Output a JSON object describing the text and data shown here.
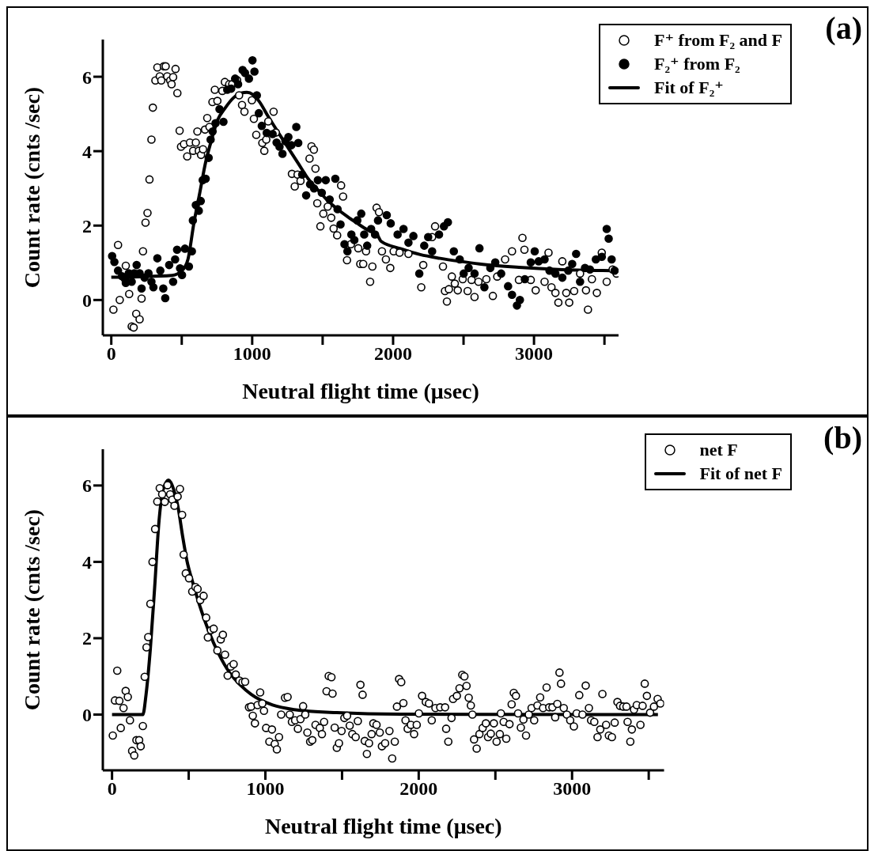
{
  "chart_data": [
    {
      "type": "scatter",
      "xlabel": "Neutral flight time (μsec)",
      "ylabel": "Count rate (cnts /sec)",
      "annotations": [
        "(a)"
      ],
      "xlim": [
        -60,
        3600
      ],
      "ylim": [
        -0.95,
        7.0
      ],
      "xticks": [
        0,
        {
          "value": 500,
          "label": null
        },
        1000,
        {
          "value": 1500,
          "label": null
        },
        2000,
        {
          "value": 2500,
          "label": null
        },
        3000,
        {
          "value": 3500,
          "label": null
        }
      ],
      "yticks": [
        0,
        2,
        4,
        6
      ],
      "grid": false,
      "legend": "top right",
      "marker": "circle",
      "series": [
        {
          "name": "F⁺ from F₂ and F",
          "type": "scatter",
          "color": "#000000",
          "x": [
            15,
            48,
            60,
            103,
            127,
            145,
            159,
            177,
            201,
            215,
            225,
            243,
            257,
            271,
            285,
            295,
            313,
            327,
            344,
            355,
            373,
            386,
            397,
            418,
            428,
            439,
            456,
            469,
            485,
            495,
            516,
            539,
            558,
            581,
            600,
            611,
            621,
            637,
            651,
            665,
            681,
            697,
            718,
            735,
            753,
            788,
            806,
            837,
            858,
            893,
            907,
            928,
            945,
            998,
            1012,
            1029,
            1072,
            1086,
            1100,
            1114,
            1152,
            1168,
            1282,
            1302,
            1322,
            1343,
            1407,
            1421,
            1438,
            1449,
            1462,
            1484,
            1505,
            1536,
            1561,
            1578,
            1603,
            1631,
            1645,
            1673,
            1701,
            1753,
            1767,
            1788,
            1808,
            1837,
            1853,
            1883,
            1900,
            1921,
            1949,
            1980,
            2004,
            2046,
            2109,
            2200,
            2214,
            2277,
            2298,
            2354,
            2368,
            2382,
            2396,
            2417,
            2438,
            2459,
            2494,
            2529,
            2557,
            2578,
            2606,
            2662,
            2708,
            2739,
            2795,
            2844,
            2893,
            2918,
            2932,
            2977,
            3012,
            3075,
            3103,
            3124,
            3152,
            3173,
            3201,
            3229,
            3250,
            3285,
            3327,
            3369,
            3383,
            3411,
            3446,
            3481,
            3516,
            3558,
            3586
          ],
          "values": [
            -0.26,
            1.48,
            0.0,
            0.92,
            0.16,
            -0.71,
            -0.74,
            -0.37,
            -0.52,
            0.04,
            1.31,
            2.08,
            2.34,
            3.24,
            4.31,
            5.17,
            5.9,
            6.25,
            6.01,
            5.9,
            6.28,
            6.28,
            6.01,
            5.9,
            5.8,
            5.99,
            6.21,
            5.56,
            4.55,
            4.12,
            4.19,
            3.86,
            4.23,
            4.01,
            4.23,
            4.53,
            4.01,
            3.9,
            4.05,
            4.58,
            4.89,
            4.65,
            5.32,
            5.65,
            5.35,
            5.62,
            5.86,
            5.8,
            5.8,
            5.91,
            5.5,
            5.24,
            5.06,
            5.37,
            4.87,
            4.44,
            4.22,
            4.01,
            4.31,
            4.8,
            5.06,
            4.5,
            3.39,
            3.05,
            3.37,
            3.2,
            3.8,
            4.13,
            4.04,
            3.53,
            2.6,
            1.98,
            2.32,
            2.51,
            2.21,
            1.92,
            1.74,
            3.08,
            2.78,
            1.07,
            1.5,
            1.39,
            0.97,
            0.97,
            1.31,
            0.49,
            0.9,
            2.48,
            2.36,
            1.31,
            1.09,
            0.86,
            1.31,
            1.27,
            1.24,
            0.34,
            0.94,
            1.69,
            1.98,
            0.9,
            0.24,
            -0.04,
            0.29,
            0.63,
            0.44,
            0.26,
            0.56,
            0.24,
            0.54,
            0.08,
            0.49,
            0.56,
            0.11,
            0.63,
            1.09,
            1.31,
            0.54,
            1.67,
            1.35,
            0.54,
            0.26,
            0.49,
            1.27,
            0.34,
            0.19,
            -0.07,
            1.04,
            0.19,
            -0.07,
            0.24,
            0.71,
            0.26,
            -0.26,
            0.56,
            0.19,
            1.27,
            0.49,
            0.82,
            0.71
          ]
        },
        {
          "name": "F₂⁺ from F₂",
          "type": "scatter",
          "color": "#000000",
          "x": [
            6,
            22,
            48,
            76,
            97,
            103,
            124,
            145,
            163,
            180,
            201,
            215,
            236,
            264,
            285,
            299,
            327,
            348,
            369,
            383,
            411,
            439,
            453,
            467,
            488,
            502,
            523,
            551,
            572,
            579,
            600,
            621,
            635,
            649,
            670,
            691,
            705,
            719,
            740,
            768,
            796,
            823,
            851,
            879,
            900,
            932,
            949,
            977,
            1002,
            1016,
            1033,
            1047,
            1068,
            1103,
            1145,
            1173,
            1194,
            1215,
            1236,
            1257,
            1278,
            1313,
            1327,
            1355,
            1383,
            1411,
            1439,
            1466,
            1494,
            1522,
            1550,
            1590,
            1606,
            1627,
            1655,
            1676,
            1704,
            1725,
            1746,
            1774,
            1795,
            1816,
            1844,
            1872,
            1893,
            1955,
            1983,
            2032,
            2074,
            2109,
            2144,
            2186,
            2221,
            2249,
            2277,
            2326,
            2361,
            2389,
            2431,
            2473,
            2501,
            2536,
            2578,
            2613,
            2648,
            2690,
            2725,
            2767,
            2816,
            2844,
            2879,
            2900,
            2935,
            2977,
            3005,
            3033,
            3075,
            3110,
            3152,
            3201,
            3243,
            3271,
            3299,
            3327,
            3362,
            3397,
            3439,
            3481,
            3516,
            3530,
            3551,
            3572
          ],
          "values": [
            1.18,
            1.02,
            0.79,
            0.64,
            0.57,
            0.46,
            0.72,
            0.49,
            0.72,
            0.94,
            0.72,
            0.31,
            0.6,
            0.72,
            0.49,
            0.34,
            1.12,
            0.79,
            0.31,
            0.05,
            0.94,
            0.49,
            1.09,
            1.35,
            0.85,
            0.67,
            1.38,
            0.9,
            1.31,
            2.14,
            2.55,
            2.4,
            2.66,
            3.22,
            3.26,
            3.82,
            4.31,
            4.53,
            4.75,
            5.13,
            4.79,
            5.65,
            5.68,
            5.95,
            5.8,
            6.18,
            6.1,
            5.95,
            6.44,
            6.14,
            5.5,
            5.02,
            4.68,
            4.49,
            4.46,
            4.23,
            4.12,
            3.93,
            4.27,
            4.38,
            4.16,
            4.65,
            4.22,
            3.37,
            2.81,
            3.11,
            3.0,
            3.22,
            2.88,
            3.22,
            2.7,
            3.26,
            2.44,
            2.03,
            1.5,
            1.31,
            1.76,
            1.61,
            2.14,
            2.32,
            1.76,
            1.46,
            1.91,
            1.76,
            2.14,
            2.28,
            2.06,
            1.76,
            1.91,
            1.54,
            1.72,
            0.71,
            1.46,
            1.69,
            1.31,
            1.76,
            1.98,
            2.09,
            1.31,
            1.09,
            0.71,
            0.86,
            0.71,
            1.39,
            0.34,
            0.86,
            1.01,
            0.71,
            0.37,
            0.14,
            -0.15,
            0.0,
            0.56,
            1.01,
            1.31,
            1.04,
            1.09,
            0.79,
            0.71,
            0.6,
            0.79,
            0.97,
            1.24,
            0.49,
            0.86,
            0.82,
            1.09,
            1.16,
            1.91,
            1.65,
            1.09,
            0.79
          ]
        },
        {
          "name": "Fit of F₂⁺",
          "type": "line",
          "marker": "none",
          "color": "#000000",
          "x": [
            0,
            431,
            502,
            544,
            586,
            628,
            670,
            712,
            754,
            810,
            866,
            921,
            963,
            1005,
            1047,
            1117,
            1187,
            1257,
            1327,
            1397,
            1466,
            1536,
            1606,
            1676,
            1746,
            1816,
            1886,
            1914,
            2053,
            2193,
            2333,
            2473,
            2613,
            2893,
            3173,
            3551
          ],
          "values": [
            0.61,
            0.66,
            0.79,
            1.09,
            2.06,
            2.88,
            3.71,
            4.31,
            4.83,
            5.17,
            5.43,
            5.56,
            5.58,
            5.52,
            5.35,
            4.91,
            4.49,
            4.08,
            3.67,
            3.26,
            2.96,
            2.67,
            2.44,
            2.24,
            2.06,
            1.89,
            1.76,
            1.58,
            1.38,
            1.22,
            1.12,
            1.04,
            0.97,
            0.88,
            0.82,
            0.79
          ]
        }
      ]
    },
    {
      "type": "scatter",
      "xlabel": "Neutral flight time (μsec)",
      "ylabel": "Count rate (cnts /sec)",
      "annotations": [
        "(b)"
      ],
      "xlim": [
        -60,
        3600
      ],
      "ylim": [
        -1.46,
        6.95
      ],
      "xticks": [
        0,
        {
          "value": 500,
          "label": null
        },
        1000,
        {
          "value": 1500,
          "label": null
        },
        2000,
        {
          "value": 2500,
          "label": null
        },
        3000,
        {
          "value": 3500,
          "label": null
        }
      ],
      "yticks": [
        0,
        2,
        4,
        6
      ],
      "grid": false,
      "legend": "top right",
      "marker": "circle",
      "series": [
        {
          "name": "net F",
          "type": "scatter",
          "color": "#000000",
          "x": [
            5,
            19,
            34,
            48,
            57,
            75,
            89,
            103,
            117,
            131,
            145,
            159,
            177,
            187,
            201,
            213,
            225,
            236,
            250,
            264,
            281,
            295,
            311,
            327,
            344,
            362,
            379,
            393,
            407,
            428,
            443,
            457,
            467,
            481,
            502,
            523,
            544,
            558,
            575,
            597,
            614,
            625,
            645,
            663,
            687,
            709,
            723,
            737,
            754,
            775,
            793,
            807,
            831,
            851,
            868,
            893,
            907,
            918,
            932,
            949,
            966,
            980,
            991,
            1005,
            1026,
            1043,
            1061,
            1075,
            1089,
            1103,
            1128,
            1145,
            1159,
            1173,
            1194,
            1212,
            1229,
            1246,
            1260,
            1274,
            1292,
            1306,
            1327,
            1355,
            1369,
            1383,
            1399,
            1413,
            1431,
            1438,
            1452,
            1466,
            1480,
            1497,
            1515,
            1533,
            1550,
            1567,
            1589,
            1603,
            1620,
            1634,
            1648,
            1662,
            1676,
            1693,
            1704,
            1725,
            1746,
            1760,
            1781,
            1809,
            1827,
            1844,
            1858,
            1872,
            1886,
            1900,
            1914,
            1928,
            1949,
            1970,
            1987,
            2001,
            2022,
            2046,
            2067,
            2085,
            2109,
            2140,
            2172,
            2179,
            2193,
            2214,
            2224,
            2249,
            2266,
            2284,
            2298,
            2312,
            2326,
            2340,
            2350,
            2361,
            2378,
            2396,
            2417,
            2438,
            2452,
            2470,
            2490,
            2508,
            2529,
            2536,
            2554,
            2571,
            2592,
            2606,
            2620,
            2634,
            2648,
            2666,
            2683,
            2700,
            2718,
            2736,
            2753,
            2774,
            2792,
            2811,
            2834,
            2851,
            2872,
            2890,
            2904,
            2918,
            2928,
            2946,
            2966,
            2988,
            3012,
            3030,
            3047,
            3068,
            3089,
            3110,
            3124,
            3145,
            3166,
            3184,
            3198,
            3222,
            3240,
            3260,
            3278,
            3296,
            3313,
            3334,
            3355,
            3362,
            3380,
            3390,
            3404,
            3422,
            3446,
            3460,
            3474,
            3488,
            3509,
            3534,
            3558,
            3576
          ],
          "values": [
            -0.55,
            0.37,
            1.15,
            0.36,
            -0.35,
            0.17,
            0.62,
            0.46,
            -0.15,
            -0.95,
            -1.07,
            -0.67,
            -0.67,
            -0.83,
            -0.3,
            0.99,
            1.76,
            2.03,
            2.9,
            4.0,
            4.86,
            5.58,
            5.93,
            5.77,
            5.57,
            6.01,
            5.77,
            5.63,
            5.47,
            5.71,
            5.91,
            5.23,
            4.19,
            3.7,
            3.57,
            3.22,
            3.34,
            3.29,
            3.0,
            3.11,
            2.54,
            2.02,
            2.21,
            2.25,
            1.68,
            1.97,
            2.09,
            1.57,
            1.02,
            1.26,
            1.32,
            1.05,
            0.89,
            0.85,
            0.86,
            0.19,
            0.21,
            -0.03,
            -0.23,
            0.25,
            0.58,
            0.29,
            0.1,
            -0.35,
            -0.71,
            -0.39,
            -0.77,
            -0.91,
            -0.59,
            0.0,
            0.44,
            0.46,
            0.0,
            -0.19,
            -0.15,
            -0.37,
            -0.12,
            0.22,
            0.0,
            -0.47,
            -0.71,
            -0.67,
            -0.27,
            -0.35,
            -0.51,
            -0.19,
            0.61,
            1.01,
            0.98,
            0.55,
            -0.34,
            -0.87,
            -0.75,
            -0.43,
            -0.09,
            -0.03,
            -0.29,
            -0.51,
            -0.59,
            -0.17,
            0.78,
            0.52,
            -0.69,
            -1.03,
            -0.75,
            -0.51,
            -0.23,
            -0.27,
            -0.47,
            -0.83,
            -0.75,
            -0.43,
            -1.15,
            -0.71,
            0.21,
            0.93,
            0.85,
            0.3,
            -0.15,
            -0.37,
            -0.27,
            -0.51,
            -0.27,
            0.03,
            0.49,
            0.33,
            0.29,
            -0.15,
            0.17,
            0.19,
            0.19,
            -0.37,
            -0.71,
            -0.09,
            0.41,
            0.49,
            0.69,
            1.04,
            1.0,
            0.75,
            0.44,
            0.24,
            0.0,
            -0.65,
            -0.89,
            -0.51,
            -0.35,
            -0.23,
            -0.59,
            -0.5,
            -0.23,
            -0.71,
            -0.51,
            0.03,
            -0.19,
            -0.63,
            -0.25,
            0.27,
            0.57,
            0.49,
            0.03,
            -0.34,
            -0.13,
            -0.55,
            0.0,
            0.17,
            -0.15,
            0.24,
            0.45,
            0.17,
            0.71,
            0.19,
            0.19,
            -0.07,
            0.28,
            1.1,
            0.81,
            0.17,
            0.0,
            -0.15,
            -0.31,
            0.03,
            0.51,
            0.0,
            0.76,
            0.17,
            -0.15,
            -0.19,
            -0.59,
            -0.39,
            0.54,
            -0.27,
            -0.55,
            -0.59,
            -0.21,
            0.33,
            0.23,
            0.21,
            0.21,
            -0.19,
            -0.71,
            -0.39,
            0.13,
            0.25,
            -0.27,
            0.23,
            0.81,
            0.49,
            0.05,
            0.21,
            0.41,
            0.29
          ]
        },
        {
          "name": "Fit of net F",
          "type": "line",
          "marker": "none",
          "color": "#000000",
          "x": [
            0,
            201,
            222,
            250,
            278,
            306,
            334,
            369,
            404,
            432,
            460,
            488,
            530,
            572,
            628,
            698,
            768,
            838,
            907,
            1047,
            1187,
            1466,
            1886,
            3560
          ],
          "values": [
            0.0,
            0.0,
            0.53,
            1.73,
            3.33,
            5.05,
            5.9,
            6.14,
            5.87,
            5.4,
            4.68,
            4.04,
            3.41,
            2.85,
            2.21,
            1.57,
            1.09,
            0.77,
            0.53,
            0.25,
            0.13,
            0.05,
            0.01,
            0.0
          ]
        }
      ]
    }
  ]
}
